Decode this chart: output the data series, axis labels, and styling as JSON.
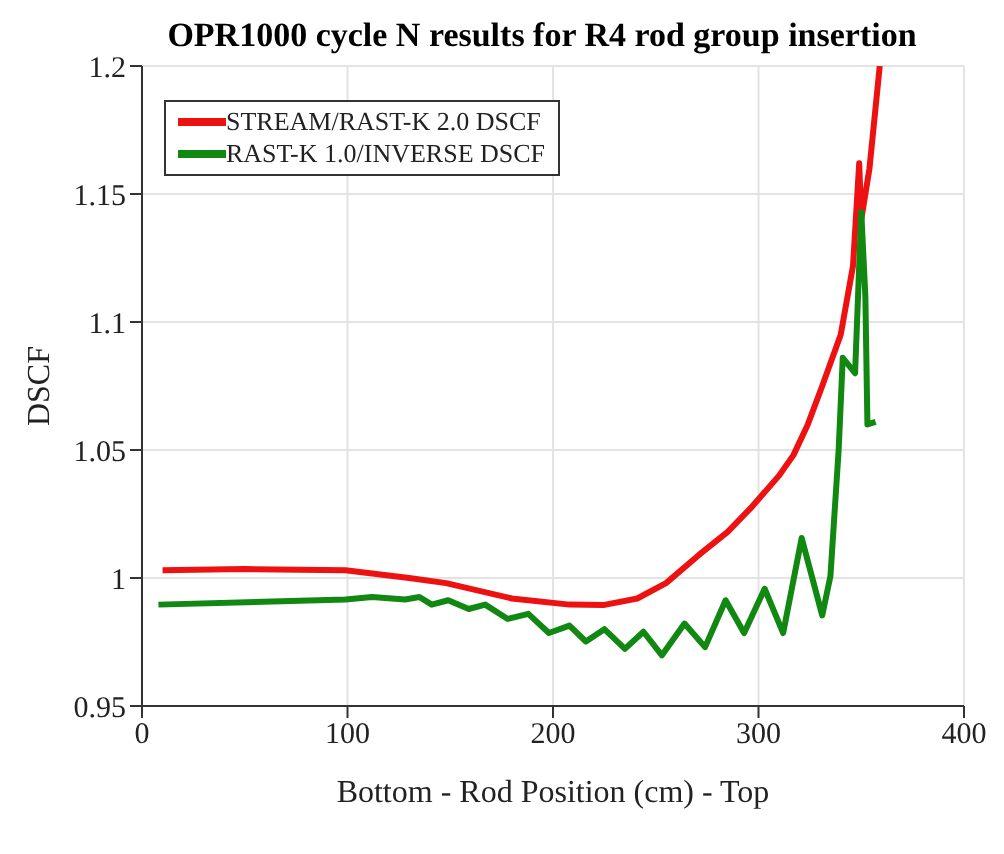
{
  "chart_data": {
    "type": "line",
    "title": "OPR1000 cycle N results for R4 rod group insertion",
    "xlabel": "Bottom - Rod Position (cm) - Top",
    "ylabel": "DSCF",
    "xlim": [
      0,
      400
    ],
    "xticks": [
      0,
      100,
      200,
      300,
      400
    ],
    "ylim": [
      0.95,
      1.2
    ],
    "yticks": [
      0.95,
      1,
      1.05,
      1.1,
      1.15,
      1.2
    ],
    "grid": true,
    "legend": "top left",
    "marker": "none",
    "line_style": "solid",
    "series": [
      {
        "name": "STREAM/RAST-K 2.0 DSCF",
        "color": "#ee1111",
        "x": [
          10,
          50,
          99,
          130,
          148,
          180,
          208,
          225,
          241,
          255,
          271,
          285,
          297,
          310,
          317,
          324,
          331,
          340,
          346,
          349,
          350,
          354,
          359
        ],
        "values": [
          1.003,
          1.0035,
          1.003,
          1.0,
          0.998,
          0.992,
          0.9896,
          0.9895,
          0.992,
          0.998,
          1.009,
          1.018,
          1.028,
          1.04,
          1.048,
          1.06,
          1.075,
          1.095,
          1.122,
          1.162,
          1.14,
          1.16,
          1.2
        ]
      },
      {
        "name": "RAST-K 1.0/INVERSE DSCF",
        "color": "#118811",
        "x": [
          8,
          99,
          112,
          128,
          135,
          141,
          149,
          159,
          167,
          178,
          188,
          198,
          208,
          216,
          225,
          235,
          244,
          253,
          264,
          274,
          284,
          293,
          303,
          312,
          321,
          331,
          335,
          339,
          341,
          347,
          350,
          352,
          353,
          357
        ],
        "values": [
          0.9896,
          0.9916,
          0.9926,
          0.9916,
          0.9926,
          0.9896,
          0.9913,
          0.9879,
          0.9896,
          0.984,
          0.986,
          0.9785,
          0.9814,
          0.9752,
          0.98,
          0.9723,
          0.979,
          0.9698,
          0.9822,
          0.973,
          0.9913,
          0.9785,
          0.9958,
          0.9785,
          1.0156,
          0.9854,
          1.0007,
          1.05,
          1.086,
          1.08,
          1.143,
          1.11,
          1.06,
          1.061
        ]
      }
    ]
  }
}
